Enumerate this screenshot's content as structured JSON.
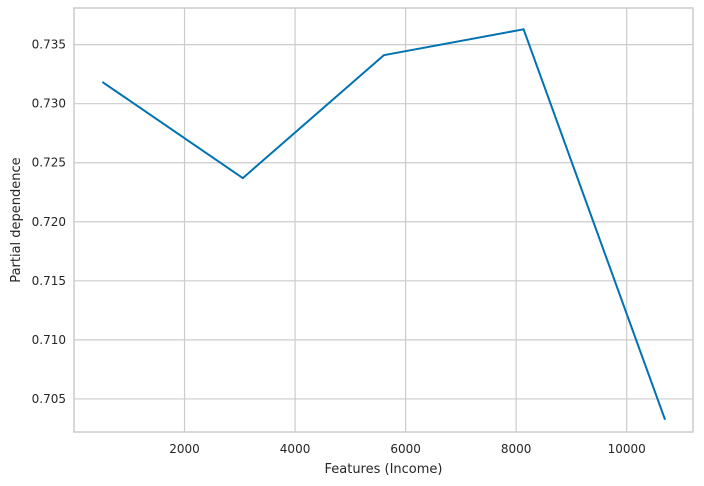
{
  "chart_data": {
    "type": "line",
    "title": "",
    "xlabel": "Features (Income)",
    "ylabel": "Partial dependence",
    "xlim": [
      0,
      11200
    ],
    "ylim": [
      0.7022,
      0.7381
    ],
    "xticks": [
      2000,
      4000,
      6000,
      8000,
      10000
    ],
    "yticks": [
      0.705,
      0.71,
      0.715,
      0.72,
      0.725,
      0.73,
      0.735
    ],
    "grid": true,
    "legend": "none",
    "series": [
      {
        "color": "#0072b2",
        "x": [
          525,
          3055,
          5605,
          8135,
          10690
        ],
        "y": [
          0.7318,
          0.7237,
          0.7341,
          0.7363,
          0.7033
        ]
      }
    ]
  }
}
